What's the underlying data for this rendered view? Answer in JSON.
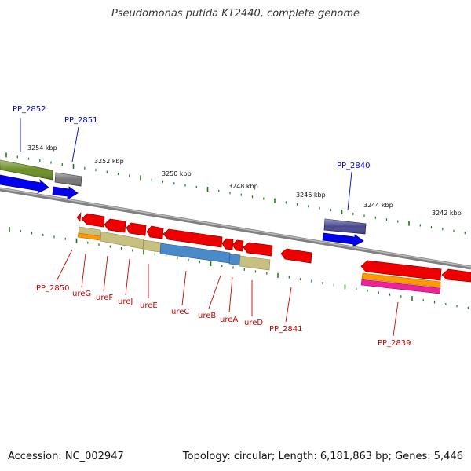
{
  "title": "Pseudomonas putida KT2440, complete genome",
  "accession": "Accession: NC_002947",
  "topology": "Topology: circular; Length: 6,181,863 bp; Genes: 5,446",
  "scale_labels": [
    "3254 kbp",
    "3252 kbp",
    "3250 kbp",
    "3248 kbp",
    "3246 kbp",
    "3244 kbp",
    "3242 kbp"
  ],
  "blue_labels": [
    "PP_2852",
    "PP_2851",
    "PP_2840"
  ],
  "red_labels": [
    "PP_2850",
    "ureG",
    "ureF",
    "ureJ",
    "ureE",
    "ureC",
    "ureB",
    "ureA",
    "ureD",
    "PP_2841",
    "PP_2839"
  ],
  "colors": {
    "backbone": "#808080",
    "scale_tick": "#1a7a1a",
    "gene_red": "#ee0000",
    "gene_blue": "#0000ee",
    "cds_olive": "#6b8e23",
    "cds_khaki": "#c8c080",
    "cds_steelblue": "#4a8ac8",
    "cds_orange": "#ff9900",
    "cds_magenta": "#ee2299",
    "cds_gray": "#777777",
    "cds_slate": "#484890",
    "label_blue": "#0000cc",
    "label_red": "#cc0000"
  }
}
